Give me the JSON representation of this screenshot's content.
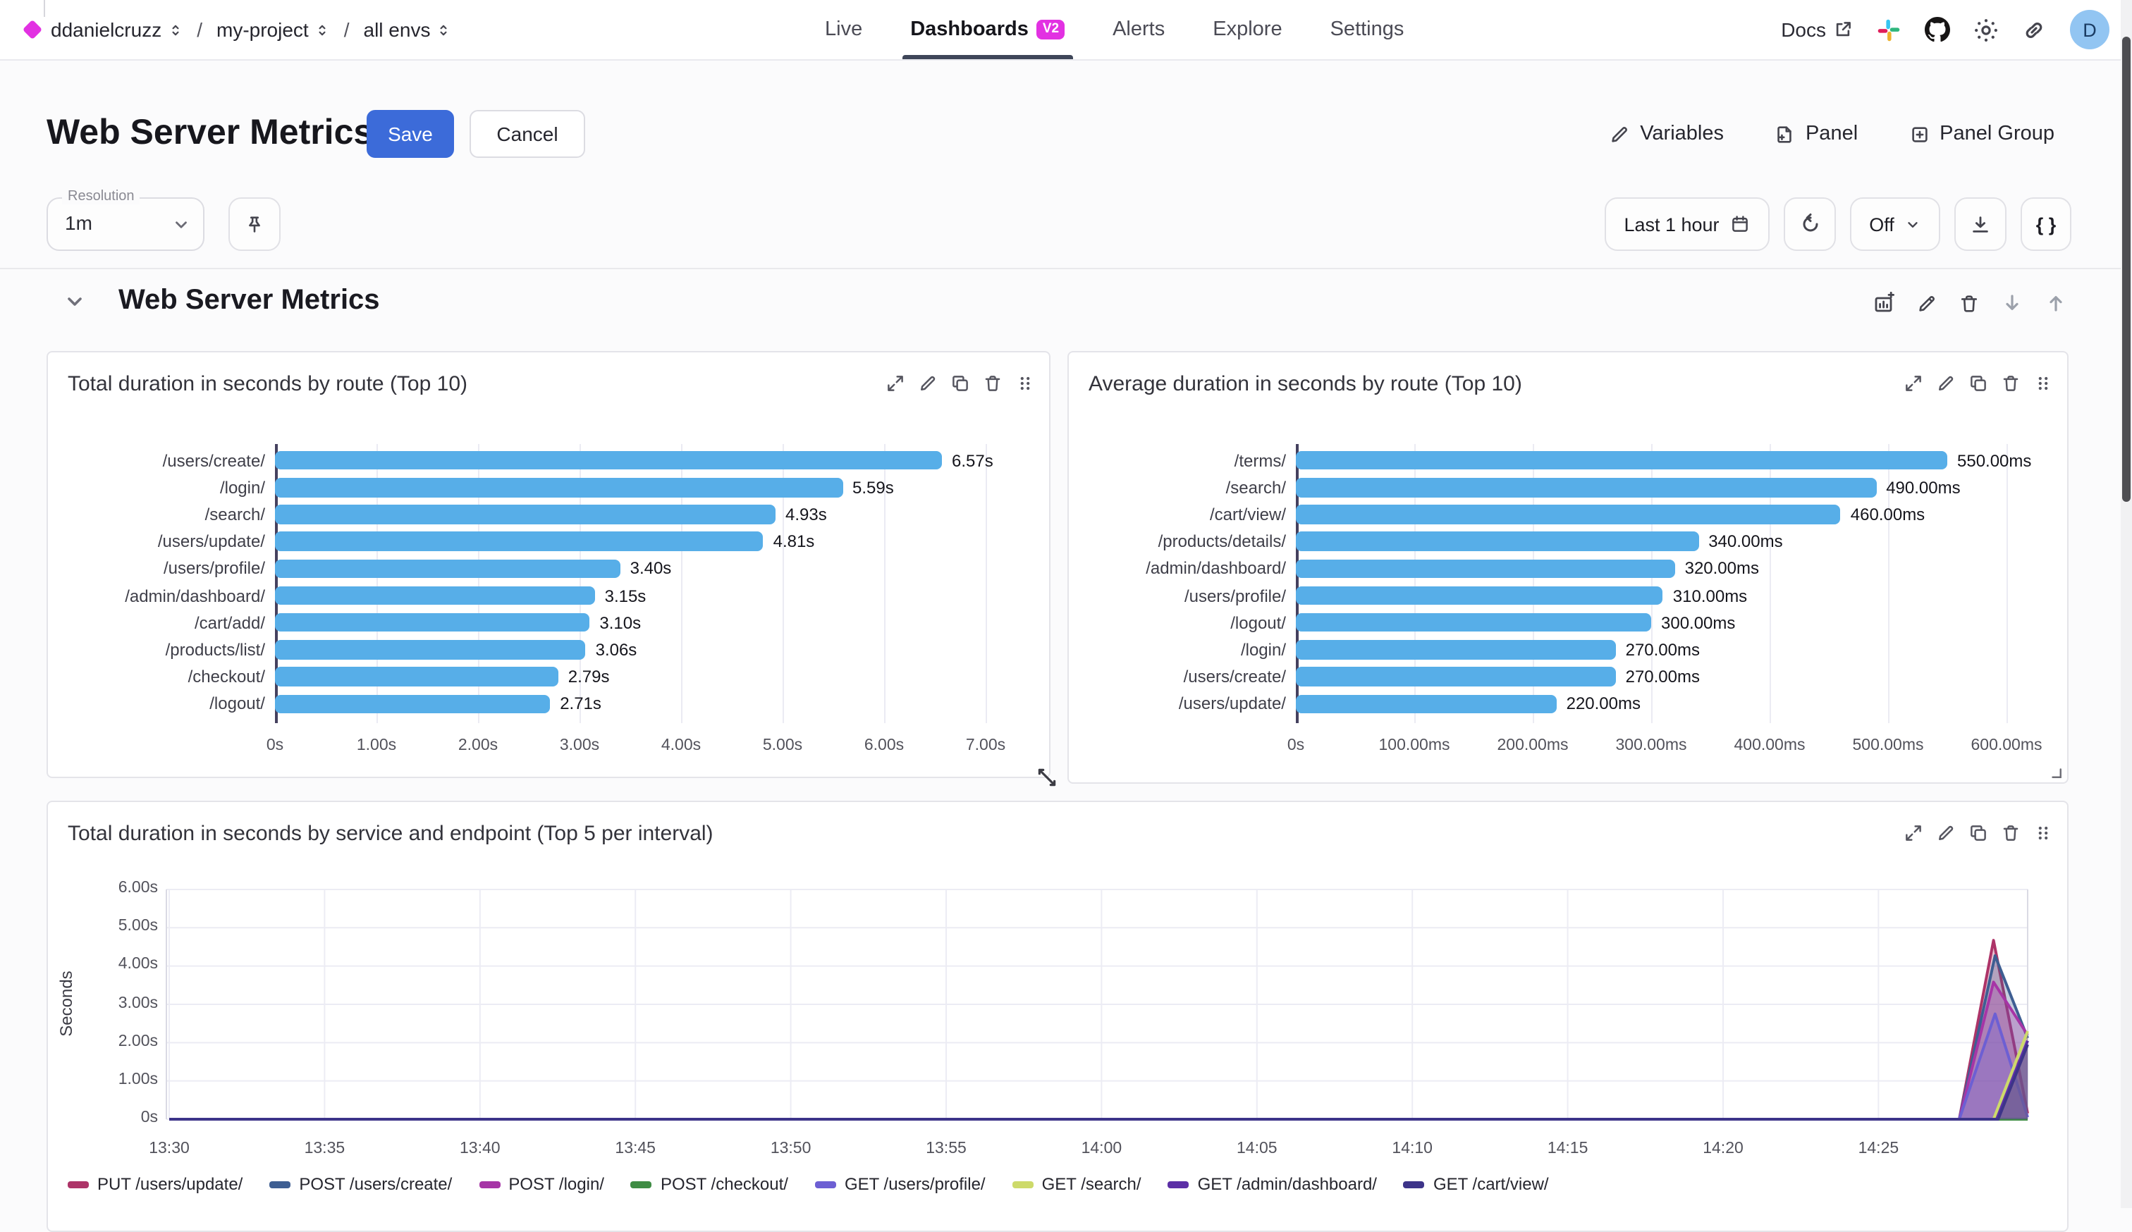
{
  "header": {
    "breadcrumb": {
      "org": "ddanielcruzz",
      "project": "my-project",
      "env": "all envs",
      "sep1": "/",
      "sep2": "/"
    },
    "nav": [
      {
        "label": "Live"
      },
      {
        "label": "Dashboards",
        "badge": "V2"
      },
      {
        "label": "Alerts"
      },
      {
        "label": "Explore"
      },
      {
        "label": "Settings"
      }
    ],
    "docs_label": "Docs",
    "avatar_initial": "D"
  },
  "toolbar": {
    "page_title": "Web Server Metrics",
    "save_label": "Save",
    "cancel_label": "Cancel",
    "variables_label": "Variables",
    "panel_label": "Panel",
    "panel_group_label": "Panel Group"
  },
  "controls": {
    "resolution_label": "Resolution",
    "resolution_value": "1m",
    "time_range_label": "Last 1 hour",
    "refresh_value": "Off",
    "code_label": "{ }"
  },
  "section": {
    "title": "Web Server Metrics"
  },
  "chart_data": [
    {
      "type": "bar",
      "orientation": "horizontal",
      "title": "Total duration in seconds by route (Top 10)",
      "unit": "s",
      "bar_color": "#57aee8",
      "categories": [
        "/users/create/",
        "/login/",
        "/search/",
        "/users/update/",
        "/users/profile/",
        "/admin/dashboard/",
        "/cart/add/",
        "/products/list/",
        "/checkout/",
        "/logout/"
      ],
      "values": [
        6.57,
        5.59,
        4.93,
        4.81,
        3.4,
        3.15,
        3.1,
        3.06,
        2.79,
        2.71
      ],
      "value_labels": [
        "6.57s",
        "5.59s",
        "4.93s",
        "4.81s",
        "3.40s",
        "3.15s",
        "3.10s",
        "3.06s",
        "2.79s",
        "2.71s"
      ],
      "x_ticks": [
        "0s",
        "1.00s",
        "2.00s",
        "3.00s",
        "4.00s",
        "5.00s",
        "6.00s",
        "7.00s"
      ],
      "xlim": [
        0,
        7
      ]
    },
    {
      "type": "bar",
      "orientation": "horizontal",
      "title": "Average duration in seconds by route (Top 10)",
      "unit": "ms",
      "bar_color": "#57aee8",
      "categories": [
        "/terms/",
        "/search/",
        "/cart/view/",
        "/products/details/",
        "/admin/dashboard/",
        "/users/profile/",
        "/logout/",
        "/login/",
        "/users/create/",
        "/users/update/"
      ],
      "values": [
        550,
        490,
        460,
        340,
        320,
        310,
        300,
        270,
        270,
        220
      ],
      "value_labels": [
        "550.00ms",
        "490.00ms",
        "460.00ms",
        "340.00ms",
        "320.00ms",
        "310.00ms",
        "300.00ms",
        "270.00ms",
        "270.00ms",
        "220.00ms"
      ],
      "x_ticks": [
        "0s",
        "100.00ms",
        "200.00ms",
        "300.00ms",
        "400.00ms",
        "500.00ms",
        "600.00ms"
      ],
      "xlim": [
        0,
        600
      ]
    },
    {
      "type": "line",
      "title": "Total duration in seconds by service and endpoint (Top 5 per interval)",
      "ylabel": "Seconds",
      "ylim": [
        0,
        6
      ],
      "y_ticks": [
        "0s",
        "1.00s",
        "2.00s",
        "3.00s",
        "4.00s",
        "5.00s",
        "6.00s"
      ],
      "x_ticks": [
        "13:30",
        "13:35",
        "13:40",
        "13:45",
        "13:50",
        "13:55",
        "14:00",
        "14:05",
        "14:10",
        "14:15",
        "14:20",
        "14:25"
      ],
      "x_range_minutes": [
        0,
        59.8
      ],
      "series": [
        {
          "name": "PUT /users/update/",
          "color": "#ad3468",
          "points": [
            [
              0,
              0
            ],
            [
              57.6,
              0
            ],
            [
              58.7,
              4.67
            ],
            [
              59.8,
              0.15
            ]
          ]
        },
        {
          "name": "POST /users/create/",
          "color": "#3e5e92",
          "points": [
            [
              0,
              0
            ],
            [
              57.6,
              0
            ],
            [
              58.75,
              4.27
            ],
            [
              59.8,
              2.12
            ]
          ]
        },
        {
          "name": "POST /login/",
          "color": "#a635a6",
          "points": [
            [
              0,
              0
            ],
            [
              57.6,
              0
            ],
            [
              58.7,
              3.58
            ],
            [
              59.8,
              2.2
            ]
          ]
        },
        {
          "name": "POST /checkout/",
          "color": "#3f8c44",
          "points": [
            [
              0,
              0
            ],
            [
              59.8,
              0
            ]
          ]
        },
        {
          "name": "GET /users/profile/",
          "color": "#6d5fd3",
          "points": [
            [
              0,
              0
            ],
            [
              57.6,
              0
            ],
            [
              58.75,
              2.75
            ],
            [
              59.8,
              0.05
            ]
          ]
        },
        {
          "name": "GET /search/",
          "color": "#cdda6a",
          "points": [
            [
              0,
              0
            ],
            [
              58.7,
              0
            ],
            [
              59.8,
              2.3
            ]
          ]
        },
        {
          "name": "GET /admin/dashboard/",
          "color": "#5c2fa6",
          "points": [
            [
              0,
              0
            ],
            [
              58.8,
              0
            ],
            [
              59.8,
              2.05
            ]
          ]
        },
        {
          "name": "GET /cart/view/",
          "color": "#3d3489",
          "points": [
            [
              0,
              0
            ],
            [
              58.85,
              0
            ],
            [
              59.8,
              1.95
            ]
          ]
        }
      ]
    }
  ]
}
